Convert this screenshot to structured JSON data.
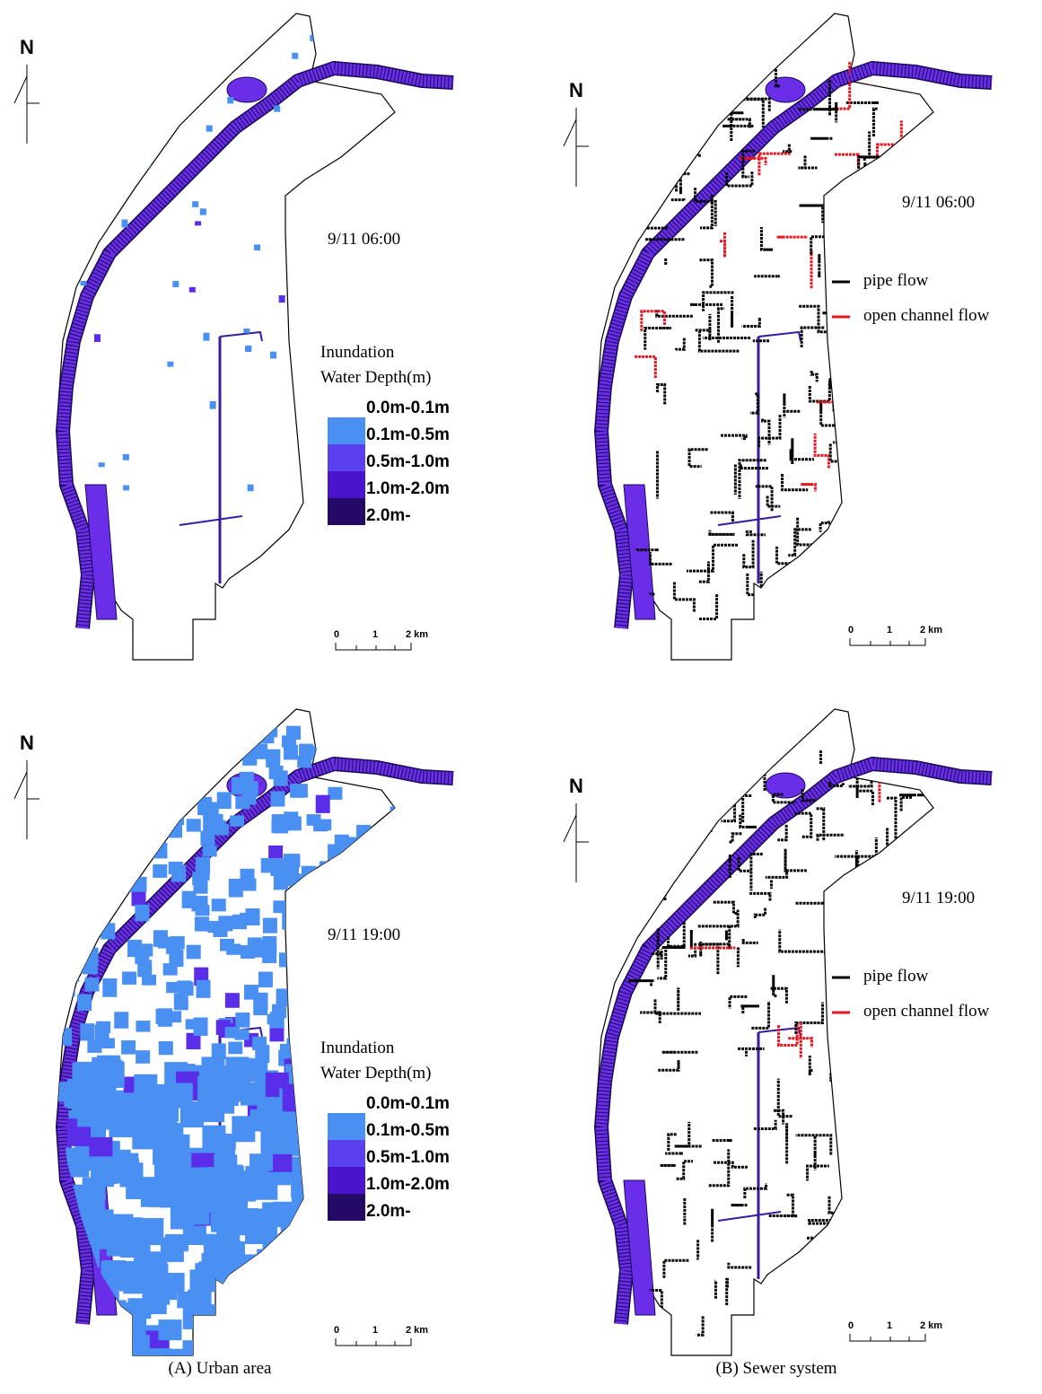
{
  "panels": [
    {
      "north": "N",
      "time": "9/11 06:00",
      "legend": {
        "title": [
          "Inundation",
          "Water Depth(m)"
        ],
        "items": [
          "0.0m-0.1m",
          "0.1m-0.5m",
          "0.5m-1.0m",
          "1.0m-2.0m",
          "2.0m-"
        ]
      },
      "scale": [
        "0",
        "1",
        "2 km"
      ]
    },
    {
      "north": "N",
      "time": "9/11 06:00",
      "legend": {
        "items": [
          "pipe flow",
          "open channel flow"
        ]
      },
      "scale": [
        "0",
        "1",
        "2 km"
      ]
    },
    {
      "north": "N",
      "time": "9/11 19:00",
      "legend": {
        "title": [
          "Inundation",
          "Water Depth(m)"
        ],
        "items": [
          "0.0m-0.1m",
          "0.1m-0.5m",
          "0.5m-1.0m",
          "1.0m-2.0m",
          "2.0m-"
        ]
      },
      "scale": [
        "0",
        "1",
        "2 km"
      ]
    },
    {
      "north": "N",
      "time": "9/11 19:00",
      "legend": {
        "items": [
          "pipe flow",
          "open channel flow"
        ]
      },
      "scale": [
        "0",
        "1",
        "2 km"
      ]
    }
  ],
  "captions": [
    "(A) Urban area",
    "(B) Sewer system"
  ]
}
